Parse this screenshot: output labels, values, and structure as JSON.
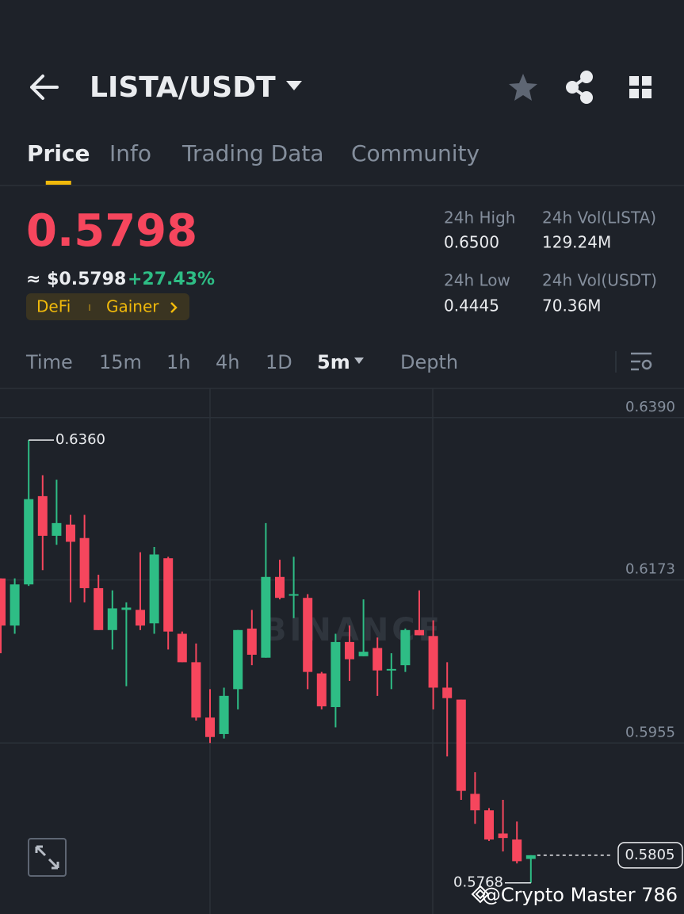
{
  "header": {
    "title": "LISTA/USDT"
  },
  "tabs": [
    "Price",
    "Info",
    "Trading Data",
    "Community"
  ],
  "active_tab": 0,
  "ticker": {
    "price": "0.5798",
    "usd_price": "≈ $0.5798",
    "change": "+27.43%",
    "tags": [
      "DeFi",
      "Gainer"
    ],
    "stats": [
      {
        "label": "24h High",
        "value": "0.6500"
      },
      {
        "label": "24h Vol(LISTA)",
        "value": "129.24M"
      },
      {
        "label": "24h Low",
        "value": "0.4445"
      },
      {
        "label": "24h Vol(USDT)",
        "value": "70.36M"
      }
    ]
  },
  "intervals": [
    "Time",
    "15m",
    "1h",
    "4h",
    "1D",
    "5m",
    "Depth"
  ],
  "active_interval": 5,
  "chart": {
    "type": "candlestick",
    "watermark": "BINANCE",
    "ylim": [
      0.5737,
      0.6429
    ],
    "yticks": [
      {
        "value": 0.639,
        "label": "0.6390"
      },
      0.6173,
      0.5955
    ],
    "grid": true,
    "up_color": "#2ebd85",
    "down_color": "#f6465d",
    "high_label": {
      "value": 0.636,
      "label": "0.6360"
    },
    "low_label": {
      "value": 0.5768,
      "label": "0.5768"
    },
    "last_price": {
      "value": 0.5805,
      "label": "0.5805"
    },
    "candles": [
      {
        "o": 0.6175,
        "h": 0.6175,
        "l": 0.6075,
        "c": 0.6112
      },
      {
        "o": 0.6112,
        "h": 0.6175,
        "l": 0.6101,
        "c": 0.6167
      },
      {
        "o": 0.6167,
        "h": 0.636,
        "l": 0.6165,
        "c": 0.6281
      },
      {
        "o": 0.6285,
        "h": 0.6313,
        "l": 0.6186,
        "c": 0.6232
      },
      {
        "o": 0.6232,
        "h": 0.6307,
        "l": 0.622,
        "c": 0.6249
      },
      {
        "o": 0.6247,
        "h": 0.626,
        "l": 0.6143,
        "c": 0.6224
      },
      {
        "o": 0.6229,
        "h": 0.626,
        "l": 0.6143,
        "c": 0.6162
      },
      {
        "o": 0.6162,
        "h": 0.618,
        "l": 0.6106,
        "c": 0.6106
      },
      {
        "o": 0.6106,
        "h": 0.6159,
        "l": 0.608,
        "c": 0.6135
      },
      {
        "o": 0.6133,
        "h": 0.6143,
        "l": 0.6031,
        "c": 0.6136
      },
      {
        "o": 0.6133,
        "h": 0.621,
        "l": 0.6106,
        "c": 0.6112
      },
      {
        "o": 0.6115,
        "h": 0.6217,
        "l": 0.6101,
        "c": 0.6207
      },
      {
        "o": 0.6202,
        "h": 0.6204,
        "l": 0.608,
        "c": 0.6104
      },
      {
        "o": 0.6101,
        "h": 0.6104,
        "l": 0.6063,
        "c": 0.6063
      },
      {
        "o": 0.6063,
        "h": 0.6088,
        "l": 0.5985,
        "c": 0.5989
      },
      {
        "o": 0.5989,
        "h": 0.6027,
        "l": 0.5955,
        "c": 0.5963
      },
      {
        "o": 0.5967,
        "h": 0.6029,
        "l": 0.5961,
        "c": 0.6018
      },
      {
        "o": 0.6027,
        "h": 0.6106,
        "l": 0.6,
        "c": 0.6106
      },
      {
        "o": 0.6108,
        "h": 0.6133,
        "l": 0.6059,
        "c": 0.6073
      },
      {
        "o": 0.6069,
        "h": 0.6249,
        "l": 0.6069,
        "c": 0.6177
      },
      {
        "o": 0.6177,
        "h": 0.62,
        "l": 0.6147,
        "c": 0.6149
      },
      {
        "o": 0.6152,
        "h": 0.6204,
        "l": 0.6122,
        "c": 0.6154
      },
      {
        "o": 0.6149,
        "h": 0.6154,
        "l": 0.6027,
        "c": 0.605
      },
      {
        "o": 0.6048,
        "h": 0.605,
        "l": 0.6,
        "c": 0.6004
      },
      {
        "o": 0.6003,
        "h": 0.6101,
        "l": 0.5976,
        "c": 0.609
      },
      {
        "o": 0.609,
        "h": 0.6112,
        "l": 0.6038,
        "c": 0.6067
      },
      {
        "o": 0.6071,
        "h": 0.6147,
        "l": 0.6071,
        "c": 0.6077
      },
      {
        "o": 0.6082,
        "h": 0.6096,
        "l": 0.6018,
        "c": 0.6052
      },
      {
        "o": 0.6052,
        "h": 0.6075,
        "l": 0.6027,
        "c": 0.6054
      },
      {
        "o": 0.6059,
        "h": 0.6108,
        "l": 0.605,
        "c": 0.6106
      },
      {
        "o": 0.6106,
        "h": 0.6159,
        "l": 0.6099,
        "c": 0.6099
      },
      {
        "o": 0.6098,
        "h": 0.6119,
        "l": 0.6,
        "c": 0.6029
      },
      {
        "o": 0.6029,
        "h": 0.6063,
        "l": 0.5937,
        "c": 0.6015
      },
      {
        "o": 0.6013,
        "h": 0.6013,
        "l": 0.5879,
        "c": 0.5891
      },
      {
        "o": 0.5887,
        "h": 0.5916,
        "l": 0.5847,
        "c": 0.5865
      },
      {
        "o": 0.5865,
        "h": 0.5868,
        "l": 0.5824,
        "c": 0.5826
      },
      {
        "o": 0.5834,
        "h": 0.5879,
        "l": 0.581,
        "c": 0.5828
      },
      {
        "o": 0.5826,
        "h": 0.585,
        "l": 0.5794,
        "c": 0.5797
      },
      {
        "o": 0.58,
        "h": 0.5805,
        "l": 0.5768,
        "c": 0.5805
      }
    ]
  },
  "overlay": {
    "watermark": "@Crypto Master 786"
  }
}
